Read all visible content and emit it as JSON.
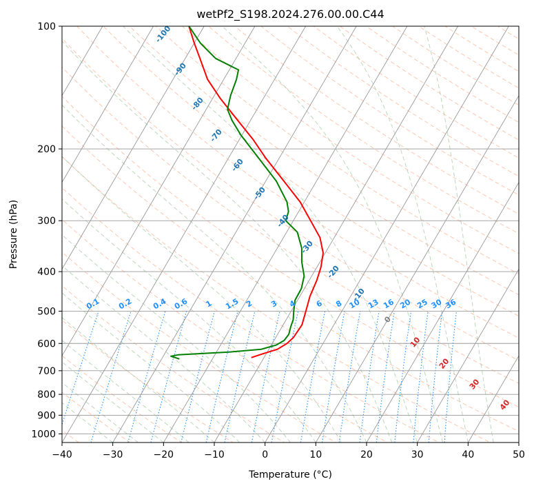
{
  "chart_data": {
    "type": "line",
    "diagram": "skew-t log-p",
    "title": "wetPf2_S198.2024.276.00.00.C44",
    "xlabel": "Temperature (°C)",
    "ylabel": "Pressure (hPa)",
    "xlim": [
      -40,
      50
    ],
    "ylim": [
      1050,
      100
    ],
    "y_scale": "log",
    "x_ticks": [
      -40,
      -30,
      -20,
      -10,
      0,
      10,
      20,
      30,
      40,
      50
    ],
    "x_tick_labels": [
      "−40",
      "−30",
      "−20",
      "−10",
      "0",
      "10",
      "20",
      "30",
      "40",
      "50"
    ],
    "y_ticks": [
      100,
      200,
      300,
      400,
      500,
      600,
      700,
      800,
      900,
      1000
    ],
    "y_tick_labels": [
      "100",
      "200",
      "300",
      "400",
      "500",
      "600",
      "700",
      "800",
      "900",
      "1000"
    ],
    "grid": true,
    "series": [
      {
        "color": "#ff0000",
        "points": [
          {
            "p": 650,
            "t": -12.5
          },
          {
            "p": 635,
            "t": -10.5
          },
          {
            "p": 620,
            "t": -8.3
          },
          {
            "p": 600,
            "t": -7.1
          },
          {
            "p": 580,
            "t": -6.5
          },
          {
            "p": 540,
            "t": -6.3
          },
          {
            "p": 500,
            "t": -7.1
          },
          {
            "p": 460,
            "t": -8.0
          },
          {
            "p": 420,
            "t": -8.5
          },
          {
            "p": 390,
            "t": -9.2
          },
          {
            "p": 360,
            "t": -10.4
          },
          {
            "p": 330,
            "t": -12.8
          },
          {
            "p": 300,
            "t": -16.6
          },
          {
            "p": 270,
            "t": -20.8
          },
          {
            "p": 240,
            "t": -26.4
          },
          {
            "p": 210,
            "t": -32.8
          },
          {
            "p": 190,
            "t": -37.2
          },
          {
            "p": 170,
            "t": -42.6
          },
          {
            "p": 150,
            "t": -48.6
          },
          {
            "p": 135,
            "t": -53.2
          },
          {
            "p": 120,
            "t": -57.1
          },
          {
            "p": 110,
            "t": -60.0
          },
          {
            "p": 100,
            "t": -63.0
          }
        ]
      },
      {
        "color": "#008000",
        "points": [
          {
            "p": 655,
            "t": -26.5
          },
          {
            "p": 645,
            "t": -28.5
          },
          {
            "p": 640,
            "t": -27.2
          },
          {
            "p": 630,
            "t": -17.5
          },
          {
            "p": 620,
            "t": -11.5
          },
          {
            "p": 605,
            "t": -9.0
          },
          {
            "p": 590,
            "t": -8.0
          },
          {
            "p": 570,
            "t": -7.8
          },
          {
            "p": 545,
            "t": -8.3
          },
          {
            "p": 525,
            "t": -8.6
          },
          {
            "p": 500,
            "t": -9.5
          },
          {
            "p": 470,
            "t": -10.5
          },
          {
            "p": 440,
            "t": -10.6
          },
          {
            "p": 410,
            "t": -11.5
          },
          {
            "p": 380,
            "t": -13.5
          },
          {
            "p": 350,
            "t": -15.2
          },
          {
            "p": 320,
            "t": -17.9
          },
          {
            "p": 300,
            "t": -21.5
          },
          {
            "p": 285,
            "t": -22.0
          },
          {
            "p": 270,
            "t": -23.4
          },
          {
            "p": 240,
            "t": -27.9
          },
          {
            "p": 210,
            "t": -34.2
          },
          {
            "p": 185,
            "t": -40.2
          },
          {
            "p": 170,
            "t": -43.7
          },
          {
            "p": 160,
            "t": -45.8
          },
          {
            "p": 148,
            "t": -46.8
          },
          {
            "p": 135,
            "t": -47.5
          },
          {
            "p": 128,
            "t": -48.2
          },
          {
            "p": 120,
            "t": -54.0
          },
          {
            "p": 110,
            "t": -58.8
          },
          {
            "p": 100,
            "t": -63.0
          }
        ]
      }
    ],
    "dry_adiabat_labels": [
      "-100",
      "-90",
      "-80",
      "-70",
      "-60",
      "-50",
      "-40",
      "-30",
      "-20",
      "-10"
    ],
    "mixing_ratio_labels": [
      "0.1",
      "0.2",
      "0.4",
      "0.6",
      "1",
      "1.5",
      "2",
      "3",
      "4",
      "6",
      "8",
      "10",
      "13",
      "16",
      "20",
      "25",
      "30",
      "36"
    ],
    "moist_adiabat_labels": [
      "0",
      "10",
      "20",
      "30",
      "40"
    ],
    "colors": {
      "temperature": "#ff0000",
      "dewpoint": "#008000",
      "dry_adiabat_label": "#1f77b4",
      "mixing_ratio": "#1e90ff",
      "moist_adiabat_label": "#d62728",
      "zero_label": "#808080",
      "isotherm": "#999999",
      "isobar": "#999999",
      "dry_adiabat_line": "#ffa07a",
      "moist_adiabat_line": "#8fbc8f"
    }
  }
}
